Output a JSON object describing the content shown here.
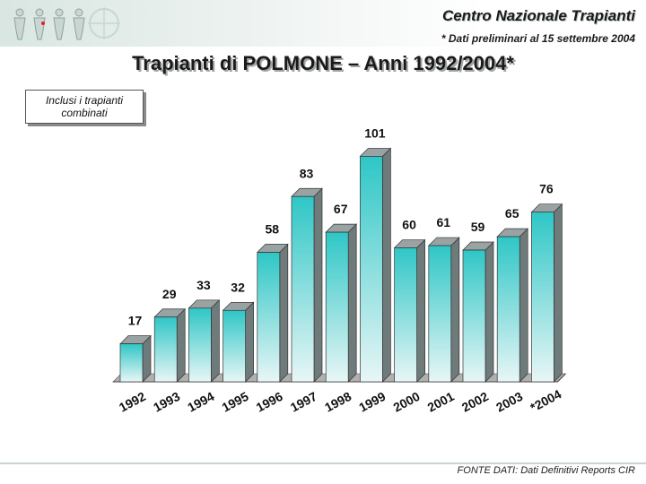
{
  "header": {
    "org_name": "Centro Nazionale Trapianti",
    "prelim_note": "* Dati preliminari al 15 settembre 2004"
  },
  "title": "Trapianti di POLMONE – Anni 1992/2004*",
  "note_box": "Inclusi i trapianti combinati",
  "footer": {
    "source": "FONTE DATI: Dati Definitivi Reports CIR"
  },
  "colors": {
    "bar_top": "#2fc6c6",
    "bar_bottom": "#e8f6f6",
    "bar_side": "#6f7a7a",
    "bar_cap": "#9aa3a3",
    "wall": "#8c8c8c",
    "floor": "#b0b0b0"
  },
  "chart_data": {
    "type": "bar",
    "title": "Trapianti di POLMONE – Anni 1992/2004*",
    "xlabel": "",
    "ylabel": "",
    "ylim": [
      0,
      110
    ],
    "grid": false,
    "categories": [
      "1992",
      "1993",
      "1994",
      "1995",
      "1996",
      "1997",
      "1998",
      "1999",
      "2000",
      "2001",
      "2002",
      "2003",
      "*2004"
    ],
    "values": [
      17,
      29,
      33,
      32,
      58,
      83,
      67,
      101,
      60,
      61,
      59,
      65,
      76
    ]
  }
}
